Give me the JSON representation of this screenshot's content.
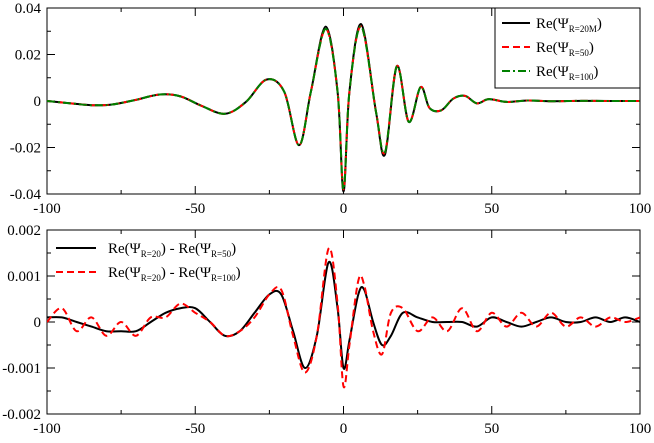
{
  "chart_data": [
    {
      "type": "line",
      "title": "",
      "xlabel": "",
      "ylabel": "",
      "xlim": [
        -100,
        100
      ],
      "ylim": [
        -0.04,
        0.04
      ],
      "grid": false,
      "legend_placement": "top-right",
      "x_ticks": [
        -100,
        -50,
        0,
        50,
        100
      ],
      "x_tick_labels": [
        "-100",
        "-50",
        "0",
        "50",
        "100"
      ],
      "y_ticks": [
        -0.04,
        -0.02,
        0,
        0.02,
        0.04
      ],
      "y_tick_labels": [
        "-0.04",
        "-0.02",
        "0",
        "0.02",
        "0.04"
      ],
      "series": [
        {
          "name": "Re(Ψ_{R=20M})",
          "legend_main": "Re(Ψ",
          "legend_sub": "R=20M",
          "legend_close": ")",
          "color": "#000000",
          "dash": "solid",
          "x": [
            -100,
            -92,
            -85,
            -78,
            -70,
            -62,
            -55,
            -48,
            -40,
            -33,
            -26,
            -20,
            -15,
            -11,
            -6,
            -2,
            0,
            2,
            6,
            11,
            14,
            18,
            22,
            26,
            29,
            33,
            37,
            41,
            45,
            49,
            55,
            62,
            70,
            80,
            90,
            100
          ],
          "y": [
            0,
            -0.001,
            -0.0018,
            -0.0015,
            0.0005,
            0.0028,
            0.002,
            -0.002,
            -0.0055,
            -0.0005,
            0.0092,
            0.004,
            -0.019,
            0.004,
            0.032,
            0.004,
            -0.039,
            0.004,
            0.033,
            -0.005,
            -0.023,
            0.015,
            -0.009,
            0.006,
            -0.003,
            -0.004,
            0.001,
            0.0022,
            -0.001,
            0.0008,
            -0.0004,
            0.0002,
            -0.0001,
            5e-05,
            0,
            0
          ]
        },
        {
          "name": "Re(Ψ_{R=50})",
          "legend_main": "Re(Ψ",
          "legend_sub": "R=50",
          "legend_close": ")",
          "color": "#ff0000",
          "dash": "dashed",
          "x": [
            -100,
            -92,
            -85,
            -78,
            -70,
            -62,
            -55,
            -48,
            -40,
            -33,
            -26,
            -20,
            -15,
            -11,
            -6,
            -2,
            0,
            2,
            6,
            11,
            14,
            18,
            22,
            26,
            29,
            33,
            37,
            41,
            45,
            49,
            55,
            62,
            70,
            80,
            90,
            100
          ],
          "y": [
            0,
            -0.001,
            -0.0018,
            -0.0015,
            0.0005,
            0.0028,
            0.002,
            -0.002,
            -0.0055,
            -0.0005,
            0.0092,
            0.004,
            -0.019,
            0.004,
            0.031,
            0.004,
            -0.038,
            0.004,
            0.032,
            -0.005,
            -0.022,
            0.015,
            -0.009,
            0.006,
            -0.003,
            -0.004,
            0.001,
            0.0022,
            -0.001,
            0.0008,
            -0.0004,
            0.0002,
            -0.0001,
            5e-05,
            0,
            0
          ]
        },
        {
          "name": "Re(Ψ_{R=100})",
          "legend_main": "Re(Ψ",
          "legend_sub": "R=100",
          "legend_close": ")",
          "color": "#008000",
          "dash": "dashdot",
          "x": [
            -100,
            -92,
            -85,
            -78,
            -70,
            -62,
            -55,
            -48,
            -40,
            -33,
            -26,
            -20,
            -15,
            -11,
            -6,
            -2,
            0,
            2,
            6,
            11,
            14,
            18,
            22,
            26,
            29,
            33,
            37,
            41,
            45,
            49,
            55,
            62,
            70,
            80,
            90,
            100
          ],
          "y": [
            0,
            -0.001,
            -0.0018,
            -0.0015,
            0.0005,
            0.0028,
            0.002,
            -0.002,
            -0.0055,
            -0.0005,
            0.0092,
            0.004,
            -0.019,
            0.004,
            0.031,
            0.004,
            -0.038,
            0.004,
            0.032,
            -0.005,
            -0.022,
            0.015,
            -0.009,
            0.006,
            -0.003,
            -0.004,
            0.001,
            0.0022,
            -0.001,
            0.0008,
            -0.0004,
            0.0002,
            -0.0001,
            5e-05,
            0,
            0
          ]
        }
      ]
    },
    {
      "type": "line",
      "title": "",
      "xlabel": "",
      "ylabel": "",
      "xlim": [
        -100,
        100
      ],
      "ylim": [
        -0.002,
        0.002
      ],
      "grid": false,
      "legend_placement": "top-left",
      "x_ticks": [
        -100,
        -50,
        0,
        50,
        100
      ],
      "x_tick_labels": [
        "-100",
        "-50",
        "0",
        "50",
        "100"
      ],
      "y_ticks": [
        -0.002,
        -0.001,
        0,
        0.001,
        0.002
      ],
      "y_tick_labels": [
        "-0.002",
        "-0.001",
        "0",
        "0.001",
        "0.002"
      ],
      "series": [
        {
          "name": "Re(Ψ_{R=20}) - Re(Ψ_{R=50})",
          "legend_main": "Re(Ψ",
          "legend_sub": "R=20",
          "legend_mid": ") - Re(Ψ",
          "legend_sub2": "R=50",
          "legend_close": ")",
          "color": "#000000",
          "dash": "solid",
          "x": [
            -100,
            -95,
            -90,
            -85,
            -80,
            -75,
            -70,
            -65,
            -60,
            -55,
            -50,
            -45,
            -40,
            -35,
            -30,
            -25,
            -21,
            -17,
            -13,
            -9,
            -5,
            -2,
            0,
            2,
            5,
            7,
            10,
            13,
            16,
            20,
            25,
            30,
            35,
            40,
            45,
            50,
            55,
            60,
            65,
            70,
            75,
            80,
            85,
            90,
            95,
            100
          ],
          "y": [
            0.0001,
            0.0001,
            0.0,
            -0.0001,
            -0.0002,
            -0.0002,
            -0.0002,
            0.0,
            0.0002,
            0.0003,
            0.0003,
            0.0,
            -0.0003,
            -0.0002,
            0.0002,
            0.0006,
            0.0006,
            -0.0002,
            -0.001,
            -0.0003,
            0.0013,
            0.0003,
            -0.001,
            -0.0004,
            0.0006,
            0.0007,
            0.0,
            -0.0005,
            -0.0003,
            0.0002,
            0.0001,
            0.0,
            0.0,
            0.0,
            -0.0001,
            0.0001,
            0.0,
            -0.0001,
            0.0,
            0.0001,
            0.0,
            0.0,
            0.0001,
            0.0,
            0.0001,
            0.0
          ]
        },
        {
          "name": "Re(Ψ_{R=20}) - Re(Ψ_{R=100})",
          "legend_main": "Re(Ψ",
          "legend_sub": "R=20",
          "legend_mid": ") - Re(Ψ",
          "legend_sub2": "R=100",
          "legend_close": ")",
          "color": "#ff0000",
          "dash": "dashed",
          "x": [
            -100,
            -95,
            -90,
            -85,
            -80,
            -75,
            -70,
            -65,
            -60,
            -55,
            -50,
            -45,
            -40,
            -35,
            -30,
            -25,
            -21,
            -17,
            -13,
            -9,
            -5,
            -2,
            0,
            2,
            5,
            7,
            10,
            13,
            16,
            20,
            25,
            30,
            35,
            40,
            45,
            50,
            55,
            60,
            65,
            70,
            75,
            80,
            85,
            90,
            95,
            100
          ],
          "y": [
            0.0,
            0.0003,
            -0.0002,
            0.0001,
            -0.0003,
            0.0,
            -0.0003,
            0.0001,
            0.0001,
            0.0004,
            0.0002,
            0.0,
            -0.0003,
            -0.0002,
            0.0001,
            0.0006,
            0.0007,
            -0.0003,
            -0.0011,
            -0.0003,
            0.0016,
            0.0004,
            -0.0014,
            -0.0005,
            0.0009,
            0.0008,
            -0.0002,
            -0.0007,
            0.0002,
            0.0003,
            -0.0002,
            0.0001,
            -0.0002,
            0.0003,
            -0.0002,
            0.0002,
            -0.0001,
            0.0002,
            -0.0001,
            0.0002,
            -0.0001,
            0.0001,
            -0.0001,
            0.0001,
            0.0,
            0.0001
          ]
        }
      ]
    }
  ]
}
